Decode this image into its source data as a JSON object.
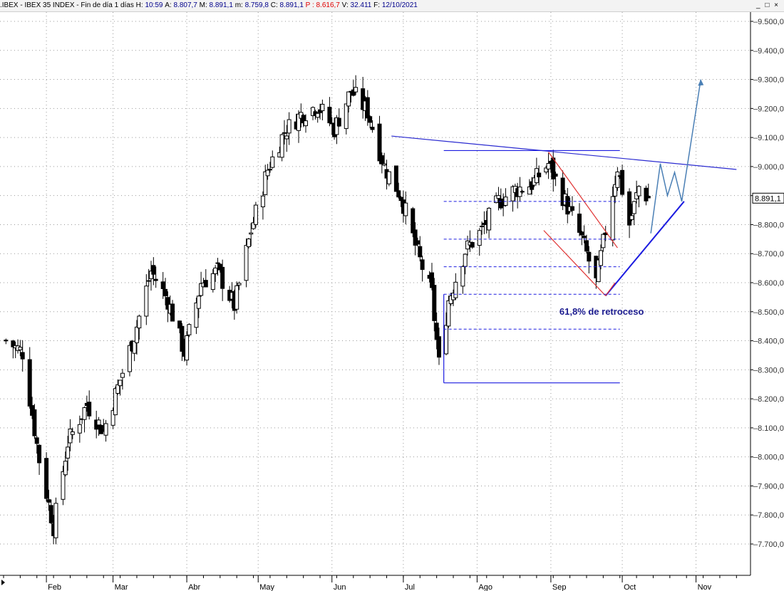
{
  "header": {
    "symbol": ".IBEX - IBEX 35 INDEX - Fin de día 1 días",
    "h_label": "H:",
    "h_value": "10:59",
    "a_label": "A:",
    "a_value": "8.807,7",
    "m_label": "M:",
    "m_value": "8.891,1",
    "min_label": "m:",
    "min_value": "8.759,8",
    "c_label": "C:",
    "c_value": "8.891,1",
    "p_label": "P :",
    "p_value": "8.616,7",
    "v_label": "V:",
    "v_value": "32.411",
    "f_label": "F:",
    "f_value": "12/10/2021",
    "window_controls": "_ □ ×"
  },
  "chart_data": {
    "type": "candlestick",
    "instrument": ".IBEX - IBEX 35 INDEX",
    "y_ticks": [
      "9.500,0",
      "9.400,0",
      "9.300,0",
      "9.200,0",
      "9.100,0",
      "9.000,0",
      "8.900,0",
      "8.800,0",
      "8.700,0",
      "8.600,0",
      "8.500,0",
      "8.400,0",
      "8.300,0",
      "8.200,0",
      "8.100,0",
      "8.000,0",
      "7.900,0",
      "7.800,0",
      "7.700,0"
    ],
    "y_tick_values": [
      9500,
      9400,
      9300,
      9200,
      9100,
      9000,
      8900,
      8800,
      8700,
      8600,
      8500,
      8400,
      8300,
      8200,
      8100,
      8000,
      7900,
      7800,
      7700
    ],
    "ylim": [
      7600,
      9550
    ],
    "x_months": [
      "Feb",
      "Mar",
      "Abr",
      "May",
      "Jun",
      "Jul",
      "Ago",
      "Sep",
      "Oct",
      "Nov"
    ],
    "x_range_days": [
      "2021-01-14",
      "2021-11-20"
    ],
    "month_start_dates": [
      "2021-02-01",
      "2021-03-01",
      "2021-04-01",
      "2021-05-01",
      "2021-06-01",
      "2021-07-01",
      "2021-08-01",
      "2021-09-01",
      "2021-10-01",
      "2021-11-01"
    ],
    "last_price_label": "8.891,1",
    "last_price": 8891.1,
    "closes_path": [
      {
        "date": "2021-01-15",
        "close": 8400
      },
      {
        "date": "2021-01-22",
        "close": 8360
      },
      {
        "date": "2021-01-29",
        "close": 7990
      },
      {
        "date": "2021-02-04",
        "close": 7760
      },
      {
        "date": "2021-02-10",
        "close": 8050
      },
      {
        "date": "2021-02-18",
        "close": 8180
      },
      {
        "date": "2021-02-25",
        "close": 8090
      },
      {
        "date": "2021-03-03",
        "close": 8240
      },
      {
        "date": "2021-03-10",
        "close": 8420
      },
      {
        "date": "2021-03-17",
        "close": 8640
      },
      {
        "date": "2021-03-24",
        "close": 8540
      },
      {
        "date": "2021-03-31",
        "close": 8360
      },
      {
        "date": "2021-04-07",
        "close": 8600
      },
      {
        "date": "2021-04-14",
        "close": 8640
      },
      {
        "date": "2021-04-21",
        "close": 8520
      },
      {
        "date": "2021-04-28",
        "close": 8780
      },
      {
        "date": "2021-05-05",
        "close": 8990
      },
      {
        "date": "2021-05-12",
        "close": 9120
      },
      {
        "date": "2021-05-19",
        "close": 9180
      },
      {
        "date": "2021-05-26",
        "close": 9210
      },
      {
        "date": "2021-06-02",
        "close": 9130
      },
      {
        "date": "2021-06-09",
        "close": 9260
      },
      {
        "date": "2021-06-16",
        "close": 9190
      },
      {
        "date": "2021-06-23",
        "close": 9000
      },
      {
        "date": "2021-06-30",
        "close": 8900
      },
      {
        "date": "2021-07-07",
        "close": 8700
      },
      {
        "date": "2021-07-13",
        "close": 8560
      },
      {
        "date": "2021-07-16",
        "close": 8320
      },
      {
        "date": "2021-07-20",
        "close": 8540
      },
      {
        "date": "2021-07-27",
        "close": 8710
      },
      {
        "date": "2021-08-03",
        "close": 8780
      },
      {
        "date": "2021-08-10",
        "close": 8880
      },
      {
        "date": "2021-08-17",
        "close": 8920
      },
      {
        "date": "2021-08-24",
        "close": 8940
      },
      {
        "date": "2021-08-31",
        "close": 9010
      },
      {
        "date": "2021-09-07",
        "close": 8880
      },
      {
        "date": "2021-09-14",
        "close": 8750
      },
      {
        "date": "2021-09-20",
        "close": 8600
      },
      {
        "date": "2021-09-24",
        "close": 8780
      },
      {
        "date": "2021-09-29",
        "close": 9000
      },
      {
        "date": "2021-10-04",
        "close": 8800
      },
      {
        "date": "2021-10-08",
        "close": 8930
      },
      {
        "date": "2021-10-12",
        "close": 8891
      }
    ],
    "annotation_text": "61,8% de retroceso",
    "lines": [
      {
        "kind": "resistance",
        "color": "#2a2ad0",
        "points": [
          [
            "2021-06-26",
            9105
          ],
          [
            "2021-11-18",
            8990
          ]
        ]
      },
      {
        "kind": "support",
        "color": "#1c1ce0",
        "points": [
          [
            "2021-09-24",
            8555
          ],
          [
            "2021-10-27",
            8880
          ]
        ]
      },
      {
        "kind": "fib_high",
        "color": "#1c1ce0",
        "points": [
          [
            "2021-07-18",
            9055
          ],
          [
            "2021-09-30",
            9055
          ]
        ]
      },
      {
        "kind": "fib_low",
        "color": "#1c1ce0",
        "points": [
          [
            "2021-07-18",
            8255
          ],
          [
            "2021-09-30",
            8255
          ]
        ]
      },
      {
        "kind": "fib_vertical",
        "color": "#1c1ce0",
        "points": [
          [
            "2021-07-18",
            8255
          ],
          [
            "2021-07-18",
            8560
          ]
        ]
      },
      {
        "kind": "channel_top",
        "color": "#e03030",
        "points": [
          [
            "2021-08-31",
            9050
          ],
          [
            "2021-09-29",
            8720
          ]
        ]
      },
      {
        "kind": "channel_bottom",
        "color": "#e03030",
        "points": [
          [
            "2021-08-29",
            8780
          ],
          [
            "2021-09-24",
            8555
          ]
        ]
      },
      {
        "kind": "channel_end",
        "color": "#e03030",
        "points": [
          [
            "2021-09-24",
            8555
          ],
          [
            "2021-09-28",
            8600
          ]
        ]
      }
    ],
    "fib_levels": [
      {
        "price": 8880,
        "from": "2021-07-18",
        "to": "2021-09-30"
      },
      {
        "price": 8750,
        "from": "2021-07-18",
        "to": "2021-09-30"
      },
      {
        "price": 8655,
        "from": "2021-07-18",
        "to": "2021-09-30"
      },
      {
        "price": 8560,
        "from": "2021-07-18",
        "to": "2021-09-30"
      },
      {
        "price": 8440,
        "from": "2021-07-18",
        "to": "2021-09-30"
      }
    ],
    "projection": {
      "color": "#4a7fb5",
      "points": [
        [
          "2021-10-13",
          8770
        ],
        [
          "2021-10-17",
          9010
        ],
        [
          "2021-10-20",
          8900
        ],
        [
          "2021-10-23",
          8980
        ],
        [
          "2021-10-26",
          8880
        ],
        [
          "2021-11-03",
          9300
        ]
      ]
    }
  }
}
